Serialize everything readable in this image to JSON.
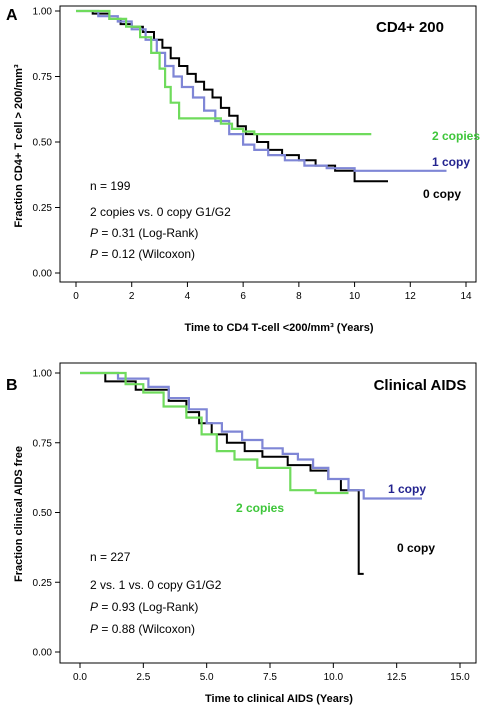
{
  "chart_data": [
    {
      "type": "line",
      "panel_letter": "A",
      "title": "CD4+ 200",
      "xlabel": "Time to CD4 T-cell <200/mm³ (Years)",
      "ylabel": "Fraction CD4+ T cell > 200/mm³",
      "xlim": [
        0,
        14
      ],
      "ylim": [
        0,
        1
      ],
      "xticks": [
        "0",
        "2",
        "4",
        "6",
        "8",
        "10",
        "12",
        "14"
      ],
      "yticks": [
        "0.00",
        "0.25",
        "0.50",
        "0.75",
        "1.00"
      ],
      "annotations": [
        "n = 199",
        "2 copies vs. 0 copy G1/G2",
        "P = 0.31 (Log-Rank)",
        "P = 0.12 (Wilcoxon)"
      ],
      "series": [
        {
          "name": "0 copy",
          "color": "#000000",
          "x": [
            0,
            0.6,
            1.2,
            1.6,
            2.0,
            2.4,
            2.8,
            3.1,
            3.4,
            3.7,
            4.0,
            4.3,
            4.6,
            4.9,
            5.2,
            5.5,
            5.8,
            6.1,
            6.5,
            6.9,
            7.4,
            8.0,
            8.6,
            9.3,
            10.0,
            11.2
          ],
          "y": [
            1.0,
            0.99,
            0.97,
            0.95,
            0.94,
            0.92,
            0.89,
            0.86,
            0.82,
            0.79,
            0.76,
            0.73,
            0.7,
            0.67,
            0.63,
            0.6,
            0.56,
            0.53,
            0.5,
            0.47,
            0.45,
            0.43,
            0.41,
            0.39,
            0.35,
            0.35
          ]
        },
        {
          "name": "1 copy",
          "color": "#7f86d6",
          "x": [
            0,
            0.8,
            1.5,
            2.0,
            2.5,
            2.9,
            3.2,
            3.5,
            3.8,
            4.2,
            4.6,
            5.0,
            5.5,
            6.0,
            6.4,
            6.9,
            7.5,
            8.2,
            9.0,
            10.0,
            13.3
          ],
          "y": [
            1.0,
            0.98,
            0.96,
            0.93,
            0.89,
            0.84,
            0.79,
            0.75,
            0.71,
            0.67,
            0.62,
            0.58,
            0.53,
            0.49,
            0.47,
            0.45,
            0.43,
            0.41,
            0.4,
            0.39,
            0.39
          ]
        },
        {
          "name": "2 copies",
          "color": "#6fdb5c",
          "x": [
            0,
            1.2,
            1.8,
            2.3,
            2.7,
            3.0,
            3.2,
            3.4,
            3.7,
            4.2,
            4.8,
            5.2,
            5.6,
            6.0,
            6.4,
            6.8,
            10.6
          ],
          "y": [
            1.0,
            0.97,
            0.94,
            0.9,
            0.84,
            0.78,
            0.71,
            0.65,
            0.59,
            0.59,
            0.59,
            0.57,
            0.55,
            0.54,
            0.53,
            0.53,
            0.53
          ]
        }
      ]
    },
    {
      "type": "line",
      "panel_letter": "B",
      "title": "Clinical AIDS",
      "xlabel": "Time to clinical AIDS (Years)",
      "ylabel": "Fraction clinical AIDS free",
      "xlim": [
        0,
        15
      ],
      "ylim": [
        0,
        1
      ],
      "xticks": [
        "0.0",
        "2.5",
        "5.0",
        "7.5",
        "10.0",
        "12.5",
        "15.0"
      ],
      "yticks": [
        "0.00",
        "0.25",
        "0.50",
        "0.75",
        "1.00"
      ],
      "annotations": [
        "n = 227",
        "2 vs. 1 vs. 0 copy G1/G2",
        "P = 0.93 (Log-Rank)",
        "P = 0.88 (Wilcoxon)"
      ],
      "series": [
        {
          "name": "0 copy",
          "color": "#000000",
          "x": [
            0,
            1.0,
            2.2,
            3.5,
            4.2,
            4.7,
            5.2,
            5.8,
            6.5,
            7.2,
            8.2,
            9.1,
            9.8,
            10.3,
            11.0,
            11.2
          ],
          "y": [
            1.0,
            0.97,
            0.94,
            0.9,
            0.86,
            0.82,
            0.78,
            0.75,
            0.72,
            0.7,
            0.67,
            0.65,
            0.62,
            0.58,
            0.28,
            0.28
          ]
        },
        {
          "name": "1 copy",
          "color": "#7f86d6",
          "x": [
            0,
            1.5,
            2.7,
            3.5,
            4.3,
            5.0,
            5.6,
            6.4,
            7.2,
            8.0,
            8.6,
            9.2,
            9.8,
            10.6,
            11.2,
            13.5
          ],
          "y": [
            1.0,
            0.98,
            0.95,
            0.91,
            0.87,
            0.82,
            0.79,
            0.76,
            0.73,
            0.71,
            0.69,
            0.66,
            0.62,
            0.58,
            0.55,
            0.55
          ]
        },
        {
          "name": "2 copies",
          "color": "#6fdb5c",
          "x": [
            0,
            1.8,
            2.5,
            3.3,
            4.2,
            4.8,
            5.4,
            6.1,
            7.0,
            8.3,
            9.3,
            10.6
          ],
          "y": [
            1.0,
            0.96,
            0.93,
            0.88,
            0.84,
            0.78,
            0.72,
            0.69,
            0.66,
            0.58,
            0.57,
            0.57
          ]
        }
      ]
    }
  ]
}
